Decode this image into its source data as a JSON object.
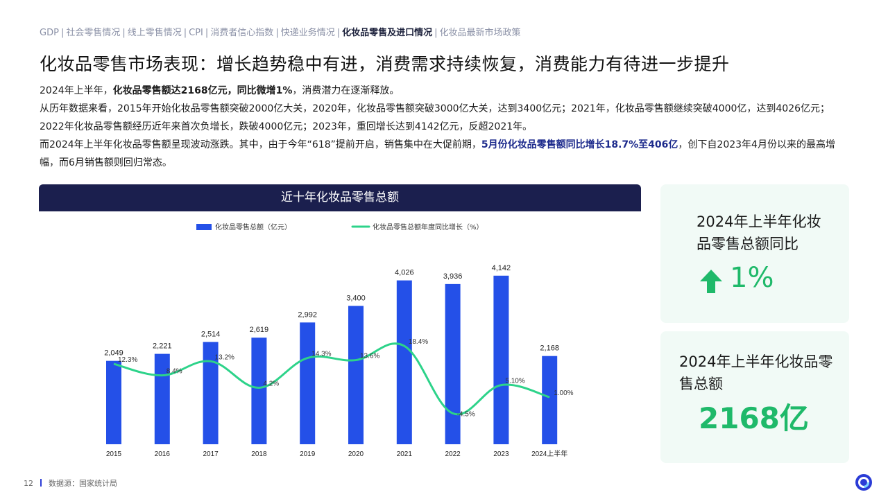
{
  "nav": {
    "items": [
      {
        "label": "GDP",
        "active": false
      },
      {
        "label": "社会零售情况",
        "active": false
      },
      {
        "label": "线上零售情况",
        "active": false
      },
      {
        "label": "CPI",
        "active": false
      },
      {
        "label": "消费者信心指数",
        "active": false
      },
      {
        "label": "快递业务情况",
        "active": false
      },
      {
        "label": "化妆品零售及进口情况",
        "active": true
      },
      {
        "label": "化妆品最新市场政策",
        "active": false
      }
    ],
    "separator": "|"
  },
  "title": "化妆品零售市场表现：增长趋势稳中有进，消费需求持续恢复，消费能力有待进一步提升",
  "body": {
    "p1_a": "2024年上半年，",
    "p1_b": "化妆品零售额达2168亿元，同比微增1%",
    "p1_c": "，消费潜力在逐渐释放。",
    "p2": "从历年数据来看，2015年开始化妆品零售额突破2000亿大关，2020年，化妆品零售额突破3000亿大关，达到3400亿元；2021年，化妆品零售额继续突破4000亿，达到4026亿元；2022年化妆品零售额经历近年来首次负增长，跌破4000亿元；2023年，重回增长达到4142亿元，反超2021年。",
    "p3_a": "而2024年上半年化妆品零售额呈现波动涨跌。其中，由于今年“618”提前开启，销售集中在大促前期，",
    "p3_b": "5月份化妆品零售额同比增长18.7%至406亿",
    "p3_c": "，创下自2023年4月份以来的最高增幅，而6月销售额则回归常态。"
  },
  "chart_header": "近十年化妆品零售总额",
  "chart_data": {
    "type": "bar",
    "title": "近十年化妆品零售总额",
    "categories": [
      "2015",
      "2016",
      "2017",
      "2018",
      "2019",
      "2020",
      "2021",
      "2022",
      "2023",
      "2024上半年"
    ],
    "series": [
      {
        "name": "化妆品零售总额（亿元）",
        "type": "bar",
        "values": [
          2049,
          2221,
          2514,
          2619,
          2992,
          3400,
          4026,
          3936,
          4142,
          2168
        ],
        "value_labels": [
          "2,049",
          "2,221",
          "2,514",
          "2,619",
          "2,992",
          "3,400",
          "4,026",
          "3,936",
          "4,142",
          "2,168"
        ],
        "color": "#2450e8"
      },
      {
        "name": "化妆品零售总额年度同比增长（%）",
        "type": "line",
        "values": [
          12.3,
          8.4,
          13.2,
          4.2,
          14.3,
          13.6,
          18.4,
          -4.5,
          5.1,
          1.0
        ],
        "value_labels": [
          "12.3%",
          "8.4%",
          "13.2%",
          "4.2%",
          "14.3%",
          "13.6%",
          "18.4%",
          "-4.5%",
          "5.10%",
          "1.00%"
        ],
        "color": "#2dd38a"
      }
    ],
    "ylim_bar": [
      0,
      4700
    ],
    "ylim_line": [
      -15,
      50
    ],
    "grid": false,
    "legend": "top-left"
  },
  "stat1": {
    "label": "2024年上半年化妆品零售总额同比",
    "value": "1%",
    "icon": "arrow-up-icon"
  },
  "stat2": {
    "label": "2024年上半年化妆品零售总额",
    "value": "2168亿"
  },
  "footer": {
    "page": "12",
    "source": "数据源：国家统计局"
  },
  "colors": {
    "accent_blue": "#2450e8",
    "accent_green": "#1fb96a",
    "header_navy": "#1b1f4e"
  }
}
